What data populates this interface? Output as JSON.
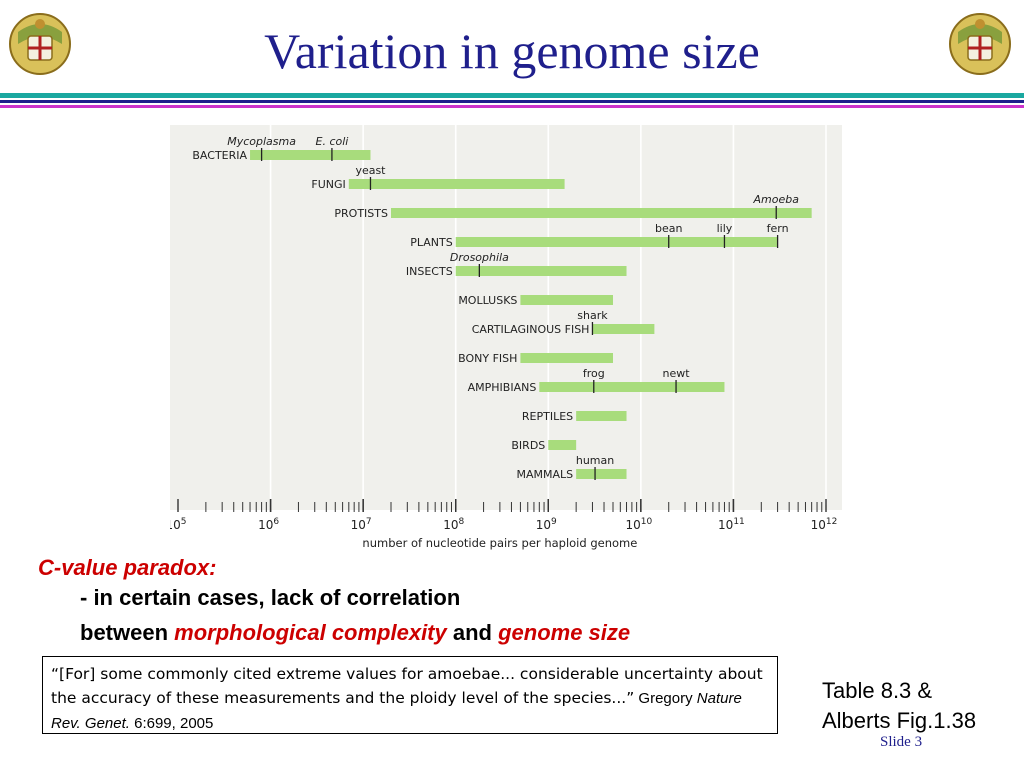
{
  "slide": {
    "title": "Variation in genome size",
    "c_value_heading": "C-value paradox:",
    "line1": "- in certain cases, lack of correlation",
    "line2_prefix": "between ",
    "line2_term1": "morphological complexity",
    "line2_and": " and ",
    "line2_term2": "genome size",
    "quote_text": "“[For] some commonly cited extreme values for amoebae... considerable uncertainty about the accuracy of these measurements and the ploidy level of the species...”",
    "citation_author": " Gregory ",
    "citation_journal": "Nature Rev. Genet.",
    "citation_ref": " 6:699, 2005",
    "reference_line1": "Table 8.3 &",
    "reference_line2": "Alberts Fig.1.38",
    "slide_number": "Slide 3",
    "colors": {
      "title": "#1f1f8c",
      "accent_red": "#cc0000",
      "rule_teal": "#1aa8a0",
      "rule_navy": "#1f1f8c",
      "rule_magenta": "#cc33cc",
      "chart_bg": "#f0f0ec",
      "bar_green": "#a8dc7c"
    },
    "icons": {
      "crest": "university-crest-icon"
    }
  },
  "chart_data": {
    "type": "bar",
    "orientation": "horizontal-range",
    "xlabel": "number of nucleotide pairs per haploid genome",
    "x_scale": "log10",
    "xlim": [
      100000,
      1000000000000
    ],
    "x_tick_labels": [
      {
        "value": 100000,
        "base": "10",
        "exp": "5"
      },
      {
        "value": 1000000,
        "base": "10",
        "exp": "6"
      },
      {
        "value": 10000000,
        "base": "10",
        "exp": "7"
      },
      {
        "value": 100000000,
        "base": "10",
        "exp": "8"
      },
      {
        "value": 1000000000,
        "base": "10",
        "exp": "9"
      },
      {
        "value": 10000000000,
        "base": "10",
        "exp": "10"
      },
      {
        "value": 100000000000,
        "base": "10",
        "exp": "11"
      },
      {
        "value": 1000000000000,
        "base": "10",
        "exp": "12"
      }
    ],
    "groups": [
      {
        "name": "BACTERIA",
        "min": 600000,
        "max": 12000000,
        "markers": [
          {
            "label": "Mycoplasma",
            "value": 800000,
            "italic": true
          },
          {
            "label": "E. coli",
            "value": 4600000,
            "italic": true
          }
        ]
      },
      {
        "name": "FUNGI",
        "min": 7000000,
        "max": 1500000000,
        "markers": [
          {
            "label": "yeast",
            "value": 12000000,
            "italic": false
          }
        ]
      },
      {
        "name": "PROTISTS",
        "min": 20000000,
        "max": 700000000000,
        "markers": [
          {
            "label": "Amoeba",
            "value": 290000000000,
            "italic": true
          }
        ]
      },
      {
        "name": "PLANTS",
        "min": 100000000,
        "max": 300000000000,
        "markers": [
          {
            "label": "bean",
            "value": 20000000000,
            "italic": false
          },
          {
            "label": "lily",
            "value": 80000000000,
            "italic": false
          },
          {
            "label": "fern",
            "value": 300000000000,
            "italic": false
          }
        ]
      },
      {
        "name": "INSECTS",
        "min": 100000000,
        "max": 7000000000,
        "markers": [
          {
            "label": "Drosophila",
            "value": 180000000,
            "italic": true
          }
        ]
      },
      {
        "name": "MOLLUSKS",
        "min": 500000000,
        "max": 5000000000,
        "markers": []
      },
      {
        "name": "CARTILAGINOUS FISH",
        "min": 3000000000,
        "max": 14000000000,
        "markers": [
          {
            "label": "shark",
            "value": 3000000000,
            "italic": false
          }
        ]
      },
      {
        "name": "BONY FISH",
        "min": 500000000,
        "max": 5000000000,
        "markers": []
      },
      {
        "name": "AMPHIBIANS",
        "min": 800000000,
        "max": 80000000000,
        "markers": [
          {
            "label": "frog",
            "value": 3100000000,
            "italic": false
          },
          {
            "label": "newt",
            "value": 24000000000,
            "italic": false
          }
        ]
      },
      {
        "name": "REPTILES",
        "min": 2000000000,
        "max": 7000000000,
        "markers": []
      },
      {
        "name": "BIRDS",
        "min": 1000000000,
        "max": 2000000000,
        "markers": []
      },
      {
        "name": "MAMMALS",
        "min": 2000000000,
        "max": 7000000000,
        "markers": [
          {
            "label": "human",
            "value": 3200000000,
            "italic": false
          }
        ]
      }
    ]
  }
}
